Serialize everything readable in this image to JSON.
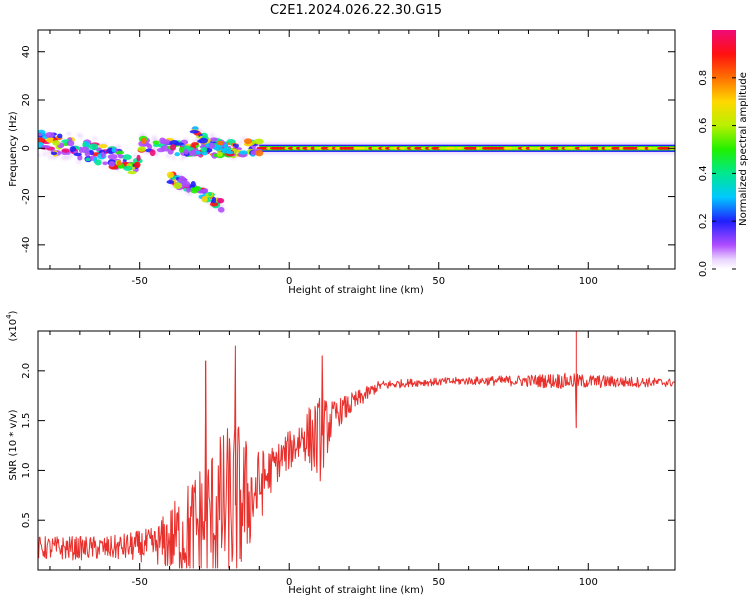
{
  "title": "C2E1.2024.026.22.30.G15",
  "chart_data": [
    {
      "type": "heatmap",
      "xlabel": "Height of straight line (km)",
      "ylabel": "Frequency (Hz)",
      "xlim": [
        -84,
        129
      ],
      "ylim": [
        -50,
        49
      ],
      "x_ticks": [
        -50,
        0,
        50,
        100
      ],
      "y_ticks": [
        -40,
        -20,
        0,
        20,
        40
      ],
      "x_tick_labels": [
        "-50",
        "0",
        "50",
        "100"
      ],
      "y_tick_labels": [
        "-40",
        "-20",
        "0",
        "20",
        "40"
      ],
      "colorbar": {
        "label": "Normalized spectral amplitude",
        "range": [
          0,
          1
        ],
        "ticks": [
          0.0,
          0.2,
          0.4,
          0.6,
          0.8
        ],
        "tick_labels": [
          "0.0",
          "0.2",
          "0.4",
          "0.6",
          "0.8"
        ]
      },
      "traces": [
        {
          "name": "main",
          "points": [
            [
              -84,
              3
            ],
            [
              -70,
              0
            ],
            [
              -55,
              -5
            ],
            [
              -50,
              -8
            ]
          ],
          "spread": 4
        },
        {
          "name": "secondary",
          "points": [
            [
              -50,
              2
            ],
            [
              -40,
              0
            ],
            [
              -28,
              0
            ],
            [
              -15,
              0
            ],
            [
              -10,
              0
            ]
          ],
          "spread": 3
        },
        {
          "name": "upper-branch",
          "points": [
            [
              -32,
              7
            ],
            [
              -25,
              2
            ],
            [
              -18,
              -2
            ]
          ],
          "spread": 2
        },
        {
          "name": "lower-branch",
          "points": [
            [
              -40,
              -12
            ],
            [
              -30,
              -18
            ],
            [
              -22,
              -24
            ]
          ],
          "spread": 2
        }
      ],
      "steady_line": {
        "x_from": -10,
        "x_to": 129,
        "frequency": 0
      }
    },
    {
      "type": "line",
      "xlabel": "Height of straight line (km)",
      "ylabel": "SNR (10 * v/v)",
      "y_multiplier_label": "(x10",
      "y_multiplier_exponent": "4",
      "y_multiplier_close": ")",
      "xlim": [
        -84,
        129
      ],
      "ylim": [
        0,
        2.4
      ],
      "x_ticks": [
        -50,
        0,
        50,
        100
      ],
      "y_ticks": [
        0.5,
        1.0,
        1.5,
        2.0
      ],
      "x_tick_labels": [
        "-50",
        "0",
        "50",
        "100"
      ],
      "y_tick_labels": [
        "0.5",
        "1.0",
        "1.5",
        "2.0"
      ],
      "color": "#e8302c",
      "envelope": {
        "x": [
          -84,
          -60,
          -45,
          -35,
          -25,
          -18,
          -12,
          -5,
          0,
          5,
          10,
          15,
          20,
          25,
          30,
          40,
          60,
          80,
          90,
          129
        ],
        "mean": [
          0.22,
          0.22,
          0.25,
          0.35,
          0.55,
          0.65,
          0.75,
          1.05,
          1.2,
          1.35,
          1.3,
          1.55,
          1.65,
          1.75,
          1.85,
          1.88,
          1.9,
          1.9,
          1.9,
          1.88
        ],
        "amplitude": [
          0.12,
          0.12,
          0.18,
          0.5,
          0.75,
          0.9,
          0.45,
          0.2,
          0.2,
          0.25,
          0.45,
          0.15,
          0.12,
          0.08,
          0.05,
          0.04,
          0.04,
          0.06,
          0.08,
          0.04
        ]
      },
      "spikes": [
        {
          "x": -28,
          "y": 2.1
        },
        {
          "x": -18,
          "y": 2.25
        },
        {
          "x": 11,
          "y": 2.15
        },
        {
          "x": 96,
          "y": 2.4
        },
        {
          "x": 96,
          "y": 1.43
        }
      ]
    }
  ]
}
